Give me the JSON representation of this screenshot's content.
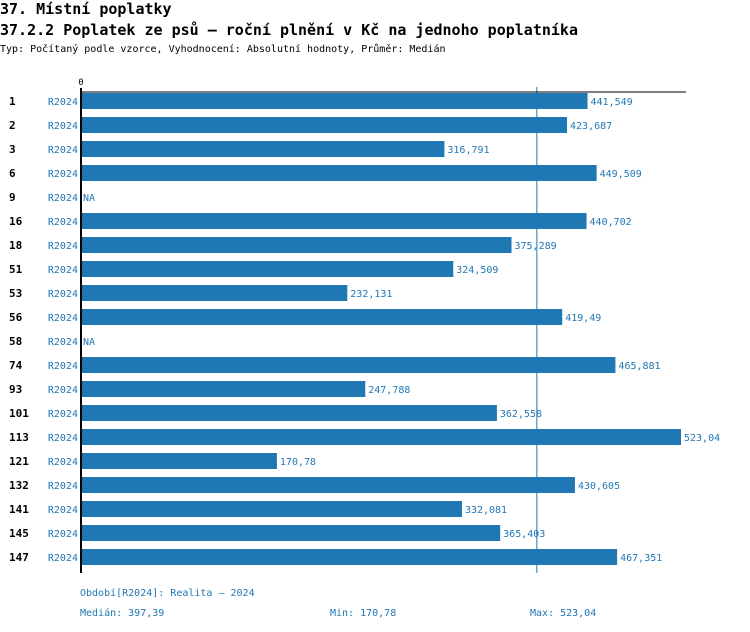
{
  "header": {
    "title": "37. Místní poplatky",
    "subtitle": "37.2.2 Poplatek ze psů – roční plnění v Kč na jednoho poplatníka",
    "info": "Typ: Počítaný podle vzorce, Vyhodnocení: Absolutní hodnoty, Průměr: Medián"
  },
  "colors": {
    "bar": "#1f77b4",
    "label": "#1f77b4",
    "axis": "#000000"
  },
  "chart_data": {
    "type": "bar",
    "orientation": "horizontal",
    "title": "37.2.2 Poplatek ze psů – roční plnění v Kč na jednoho poplatníka",
    "xlabel": "",
    "ylabel": "",
    "x_tick_labels": [
      "0"
    ],
    "xlim": [
      0,
      523.04
    ],
    "period_label": "R2024",
    "categories": [
      "1",
      "2",
      "3",
      "6",
      "9",
      "16",
      "18",
      "51",
      "53",
      "56",
      "58",
      "74",
      "93",
      "101",
      "113",
      "121",
      "132",
      "141",
      "145",
      "147"
    ],
    "values": [
      441.549,
      423.687,
      316.791,
      449.509,
      null,
      440.702,
      375.289,
      324.509,
      232.131,
      419.49,
      null,
      465.881,
      247.788,
      362.558,
      523.04,
      170.78,
      430.605,
      332.081,
      365.403,
      467.351
    ],
    "value_labels": [
      "441,549",
      "423,687",
      "316,791",
      "449,509",
      "NA",
      "440,702",
      "375,289",
      "324,509",
      "232,131",
      "419,49",
      "NA",
      "465,881",
      "247,788",
      "362,558",
      "523,04",
      "170,78",
      "430,605",
      "332,081",
      "365,403",
      "467,351"
    ],
    "median_line": 397.39,
    "grid": false
  },
  "footer": {
    "period": "Období[R2024]: Realita – 2024",
    "median": "Medián: 397,39",
    "min": "Min: 170,78",
    "max": "Max: 523,04"
  }
}
